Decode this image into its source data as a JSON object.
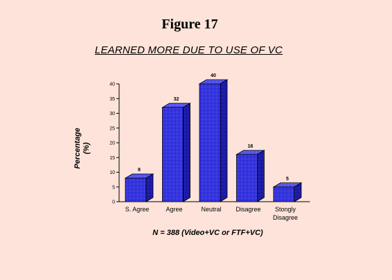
{
  "figure_label": "Figure 17",
  "chart_data": {
    "type": "bar",
    "title": "LEARNED MORE DUE TO USE OF VC",
    "categories": [
      "S. Agree",
      "Agree",
      "Neutral",
      "Disagree",
      "Stongly Disagree"
    ],
    "values": [
      8,
      32,
      40,
      16,
      5
    ],
    "data_labels": [
      "8",
      "32",
      "40",
      "16",
      "5"
    ],
    "ylabel_lines": [
      "Percentage",
      "(%)"
    ],
    "xlabel": "N = 388 (Video+VC or FTF+VC)",
    "ylim": [
      0,
      40
    ],
    "yticks": [
      0,
      5,
      10,
      15,
      20,
      25,
      30,
      35,
      40
    ],
    "grid": false,
    "bar_style": "3d",
    "colors": {
      "bar_front": "#1a1ad6",
      "bar_top": "#3b3bf0",
      "bar_side": "#0c0c9a",
      "background": "#fde3d9"
    }
  }
}
